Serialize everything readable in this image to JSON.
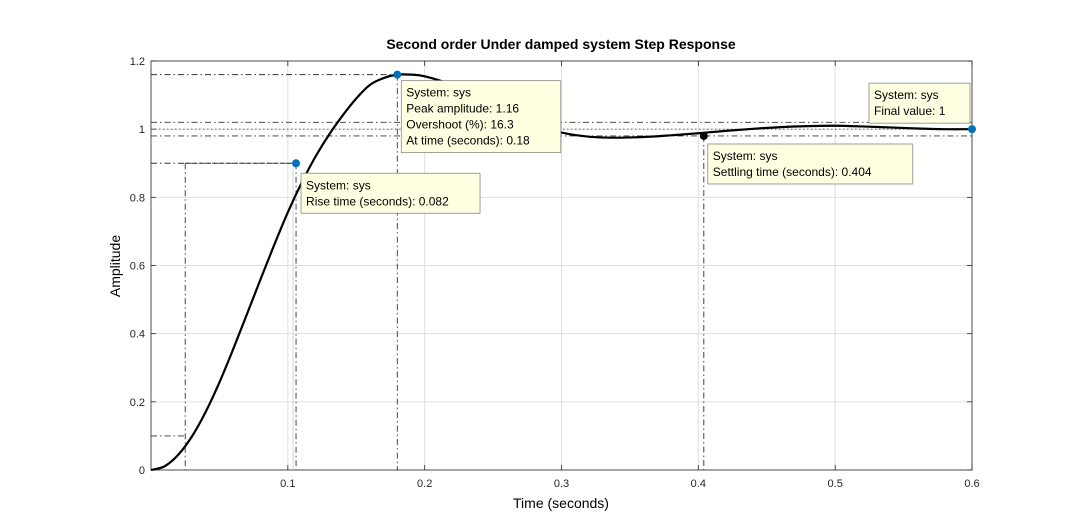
{
  "chart_data": {
    "type": "line",
    "title": "Second order Under damped system Step Response",
    "xlabel": "Time (seconds)",
    "ylabel": "Amplitude",
    "xlim": [
      0,
      0.6
    ],
    "ylim": [
      0,
      1.2
    ],
    "xticks": [
      0.1,
      0.2,
      0.3,
      0.4,
      0.5,
      0.6
    ],
    "xtick_labels": [
      "0.1",
      "0.2",
      "0.3",
      "0.4",
      "0.5",
      "0.6"
    ],
    "yticks": [
      0,
      0.2,
      0.4,
      0.6,
      0.8,
      1,
      1.2
    ],
    "ytick_labels": [
      "0",
      "0.2",
      "0.4",
      "0.6",
      "0.8",
      "1",
      "1.2"
    ],
    "grid": true,
    "line_color": "#000000",
    "marker_color": "#0072BD",
    "tip_background": "#FFFFE1",
    "series": [
      {
        "x": [
          0,
          0.01,
          0.02,
          0.03,
          0.04,
          0.05,
          0.06,
          0.07,
          0.08,
          0.09,
          0.1,
          0.11,
          0.12,
          0.13,
          0.14,
          0.15,
          0.16,
          0.17,
          0.18,
          0.19,
          0.2,
          0.22,
          0.24,
          0.26,
          0.28,
          0.3,
          0.32,
          0.34,
          0.36,
          0.38,
          0.4,
          0.42,
          0.44,
          0.46,
          0.48,
          0.5,
          0.52,
          0.54,
          0.56,
          0.58,
          0.6
        ],
        "y": [
          0,
          0.011,
          0.045,
          0.099,
          0.171,
          0.257,
          0.354,
          0.456,
          0.559,
          0.66,
          0.756,
          0.842,
          0.918,
          0.983,
          1.04,
          1.09,
          1.13,
          1.15,
          1.16,
          1.16,
          1.155,
          1.13,
          1.09,
          1.05,
          1.015,
          0.99,
          0.978,
          0.975,
          0.977,
          0.982,
          0.988,
          0.995,
          1.001,
          1.006,
          1.009,
          1.01,
          1.008,
          1.005,
          1.002,
          1.0,
          1.0
        ]
      }
    ],
    "reference_lines": {
      "settling_band": [
        0.98,
        1.02
      ],
      "final_value_line": 1,
      "rise_low": 0.1,
      "rise_high": 0.9,
      "rise_start_time": 0.025
    },
    "datatips": [
      {
        "id": "rise",
        "x": 0.106,
        "y": 0.9,
        "lines": [
          "System: sys",
          "Rise time (seconds): 0.082"
        ]
      },
      {
        "id": "peak",
        "x": 0.18,
        "y": 1.16,
        "lines": [
          "System: sys",
          "Peak amplitude: 1.16",
          "Overshoot (%): 16.3",
          "At time (seconds): 0.18"
        ]
      },
      {
        "id": "settling",
        "x": 0.404,
        "y": 0.98,
        "lines": [
          "System: sys",
          "Settling time (seconds): 0.404"
        ]
      },
      {
        "id": "final",
        "x": 0.6,
        "y": 1.0,
        "lines": [
          "System: sys",
          "Final value: 1"
        ]
      }
    ]
  }
}
